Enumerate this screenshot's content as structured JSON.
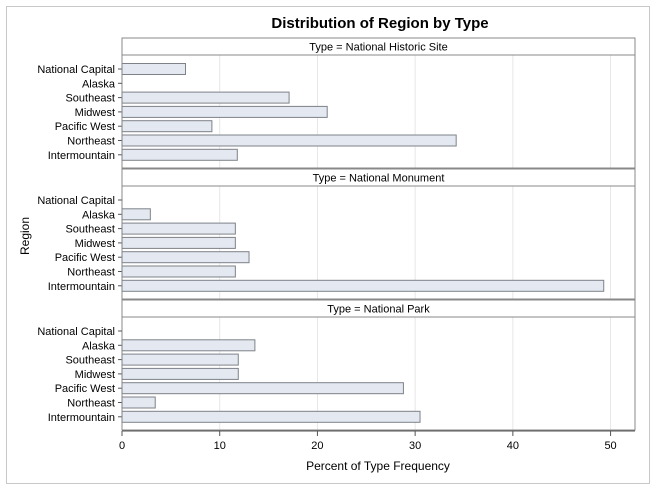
{
  "chart_data": {
    "type": "bar",
    "orientation": "horizontal",
    "title": "Distribution of Region by Type",
    "xlabel": "Percent of Type Frequency",
    "ylabel": "Region",
    "xlim": [
      0,
      52.5
    ],
    "xticks": [
      0,
      10,
      20,
      30,
      40,
      50
    ],
    "grid": true,
    "categories": [
      "National Capital",
      "Alaska",
      "Southeast",
      "Midwest",
      "Pacific West",
      "Northeast",
      "Intermountain"
    ],
    "panels": [
      {
        "label": "Type = National Historic Site",
        "values": [
          6.5,
          0,
          17.1,
          21.0,
          9.2,
          34.2,
          11.8
        ]
      },
      {
        "label": "Type = National Monument",
        "values": [
          0,
          2.9,
          11.6,
          11.6,
          13.0,
          11.6,
          49.3
        ]
      },
      {
        "label": "Type = National Park",
        "values": [
          0,
          13.6,
          11.9,
          11.9,
          28.8,
          3.4,
          30.5
        ]
      }
    ]
  },
  "colors": {
    "bar_fill": "#e3e8f1",
    "bar_stroke": "#7e8288",
    "panel_header_fill": "#ffffff",
    "panel_border": "#888888",
    "gridline": "#e6e6e6"
  }
}
